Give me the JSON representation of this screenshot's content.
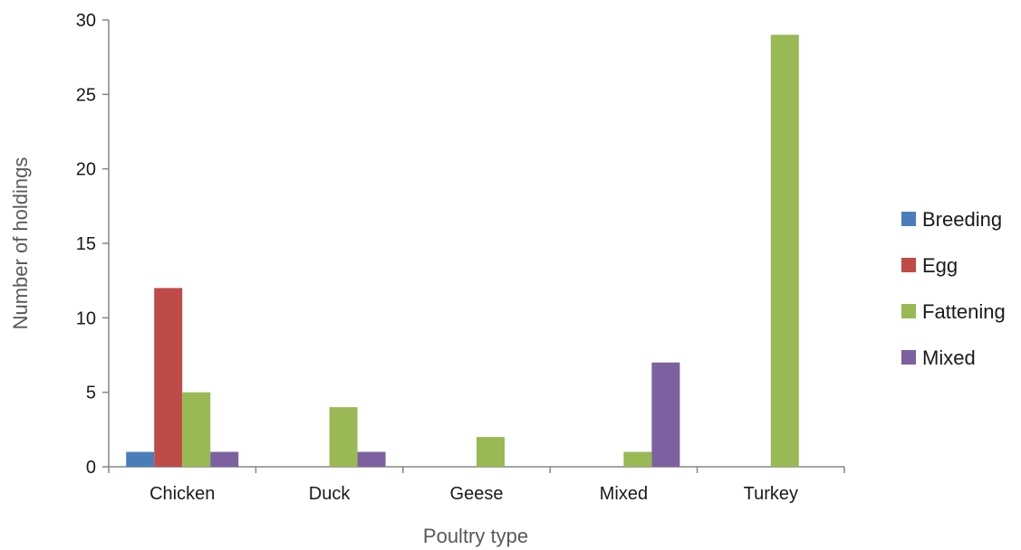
{
  "chart_data": {
    "type": "bar",
    "categories": [
      "Chicken",
      "Duck",
      "Geese",
      "Mixed",
      "Turkey"
    ],
    "series": [
      {
        "name": "Breeding",
        "color": "#4a7ebb",
        "values": [
          1,
          0,
          0,
          0,
          0
        ]
      },
      {
        "name": "Egg",
        "color": "#be4b48",
        "values": [
          12,
          0,
          0,
          0,
          0
        ]
      },
      {
        "name": "Fattening",
        "color": "#98b954",
        "values": [
          5,
          4,
          2,
          1,
          29
        ]
      },
      {
        "name": "Mixed",
        "color": "#7d60a0",
        "values": [
          1,
          1,
          0,
          7,
          0
        ]
      }
    ],
    "xlabel": "Poultry type",
    "ylabel": "Number of holdings",
    "ylim": [
      0,
      30
    ],
    "yticks": [
      0,
      5,
      10,
      15,
      20,
      25,
      30
    ],
    "grid": false,
    "legend_position": "right"
  }
}
